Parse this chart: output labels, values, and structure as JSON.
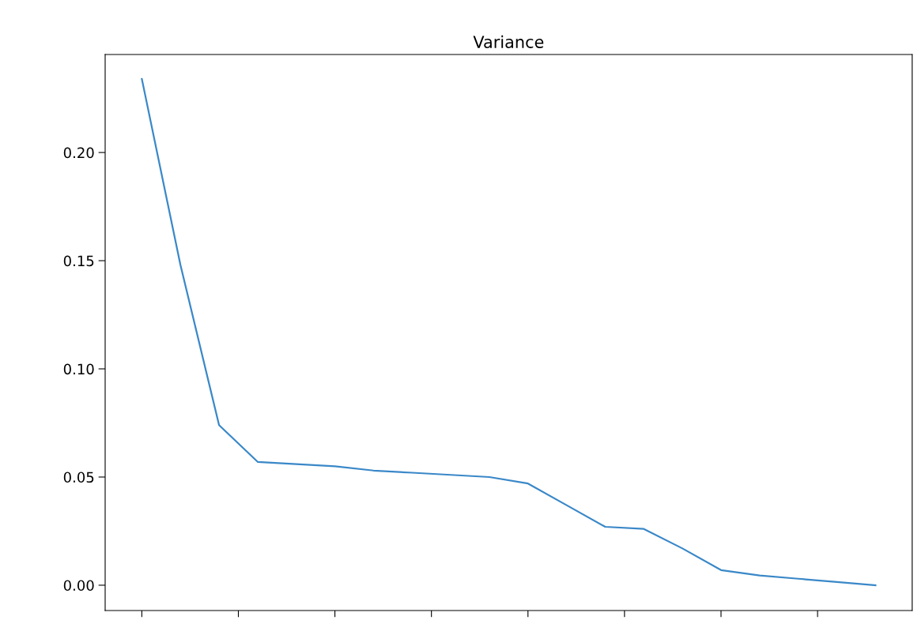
{
  "chart_data": {
    "type": "line",
    "title": "Variance",
    "categories": [
      null,
      null,
      null,
      null,
      null,
      null,
      null,
      null,
      null,
      null,
      null,
      null,
      null,
      null,
      null,
      null,
      null,
      null,
      null,
      null
    ],
    "series": [
      {
        "color": "#3a88c8",
        "values": [
          0.234,
          0.148,
          0.074,
          0.057,
          0.056,
          0.055,
          0.053,
          0.052,
          0.051,
          0.05,
          0.047,
          0.037,
          0.027,
          0.026,
          0.017,
          0.007,
          0.0045,
          0.003,
          0.0015,
          0.0
        ]
      }
    ],
    "ylim": [
      -0.0117,
      0.2453
    ],
    "yticks": [
      {
        "value": 0,
        "label": "0.00"
      },
      {
        "value": 0.05,
        "label": "0.05"
      },
      {
        "value": 0.1,
        "label": "0.10"
      },
      {
        "value": 0.15,
        "label": "0.15"
      },
      {
        "value": 0.2,
        "label": "0.20"
      }
    ],
    "tick_labels": "y",
    "grid": false,
    "legend": false
  }
}
